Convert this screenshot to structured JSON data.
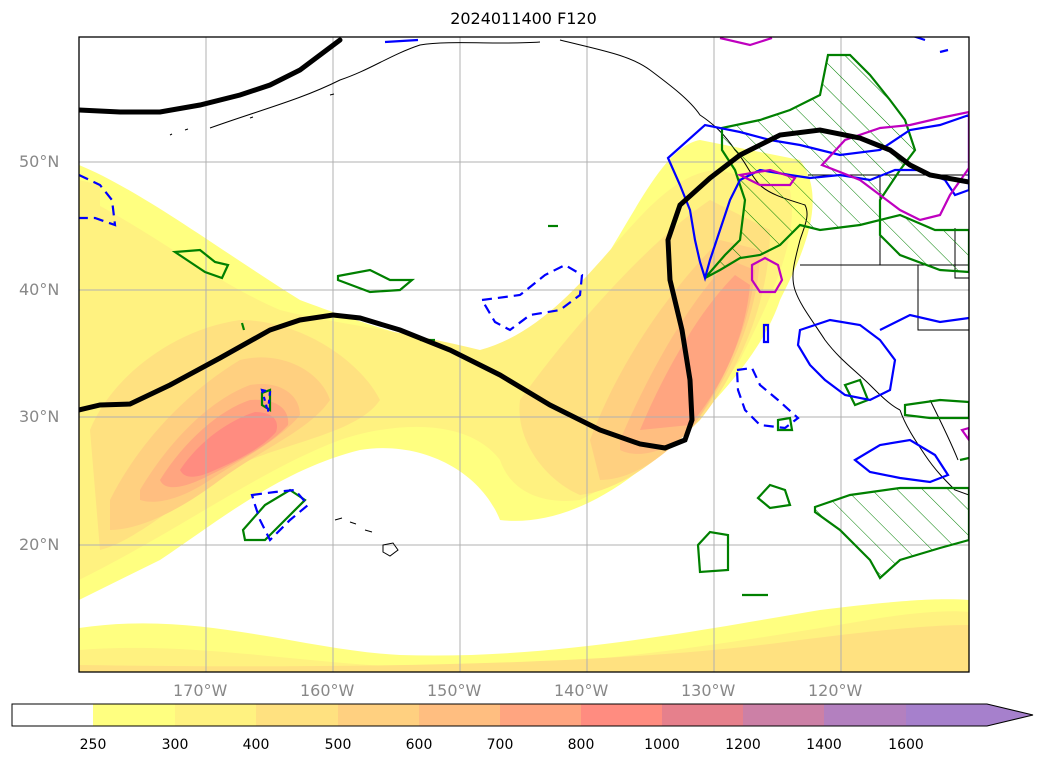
{
  "title": "2024011400 F120",
  "lat_labels": [
    "50°N",
    "40°N",
    "30°N",
    "20°N"
  ],
  "lon_labels": [
    "170°W",
    "160°W",
    "150°W",
    "140°W",
    "130°W",
    "120°W"
  ],
  "colorbar": {
    "levels": [
      "250",
      "300",
      "400",
      "500",
      "600",
      "700",
      "800",
      "1000",
      "1200",
      "1400",
      "1600"
    ],
    "colors": [
      "#ffffff",
      "#ffff80",
      "#fff280",
      "#ffe180",
      "#ffd080",
      "#ffbe80",
      "#ffa580",
      "#ff8c80",
      "#e6808c",
      "#cc80a6",
      "#b380bf",
      "#a680cc"
    ]
  },
  "contour_colors": {
    "black_contour": "#000000",
    "blue_contour": "#0000ff",
    "green_contour": "#008000",
    "magenta_contour": "#bf00bf"
  }
}
